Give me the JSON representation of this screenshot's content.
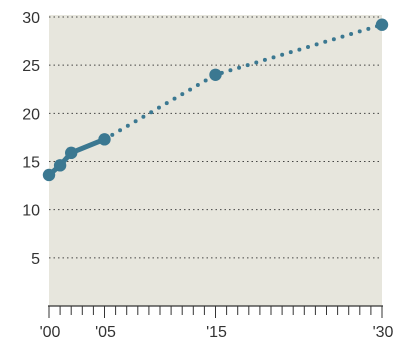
{
  "chart_data": {
    "type": "line",
    "colors": {
      "plot_background": "#e7e6dd",
      "series": "#3b7891",
      "text": "#333333"
    },
    "xlim": [
      2000,
      2030
    ],
    "ylim": [
      0,
      30
    ],
    "grid": true,
    "x_tick_values": [
      2000,
      2005,
      2015,
      2030
    ],
    "x_tick_labels": [
      "'00",
      "'05",
      "'15",
      "'30"
    ],
    "y_tick_values": [
      5,
      10,
      15,
      20,
      25,
      30
    ],
    "y_tick_labels": [
      "5",
      "10",
      "15",
      "20",
      "25",
      "30"
    ],
    "series": [
      {
        "style": "solid",
        "x": [
          2000,
          2001,
          2002,
          2005
        ],
        "y": [
          13.6,
          14.6,
          15.9,
          17.3
        ]
      },
      {
        "style": "dotted",
        "x": [
          2005,
          2015,
          2030
        ],
        "y": [
          17.3,
          24.0,
          29.2
        ]
      }
    ],
    "markers": [
      {
        "x": 2000,
        "y": 13.6
      },
      {
        "x": 2001,
        "y": 14.6
      },
      {
        "x": 2002,
        "y": 15.9
      },
      {
        "x": 2005,
        "y": 17.3
      },
      {
        "x": 2015,
        "y": 24.0
      },
      {
        "x": 2030,
        "y": 29.2
      }
    ]
  }
}
